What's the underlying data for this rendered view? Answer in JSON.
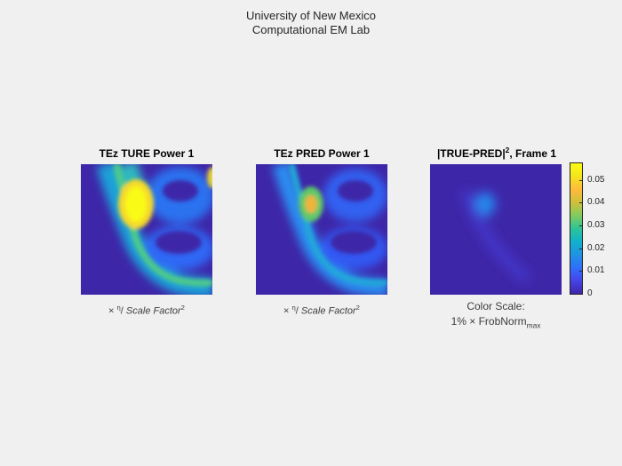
{
  "figure": {
    "suptitle_line1": "University of New Mexico",
    "suptitle_line2": "Computational EM Lab"
  },
  "panels": [
    {
      "title": "TEz  TURE Power 1",
      "xlabel_eta": "η",
      "xlabel_text": "Scale Factor",
      "xlabel_exp": "2"
    },
    {
      "title": "TEz  PRED Power 1",
      "xlabel_eta": "η",
      "xlabel_text": "Scale Factor",
      "xlabel_exp": "2"
    },
    {
      "title_main": "|TRUE-PRED|",
      "title_exp": "2",
      "title_tail": ", Frame 1",
      "xlabel_line1": "Color Scale:",
      "xlabel_line2_a": "1% ",
      "xlabel_line2_b": "FrobNorm",
      "xlabel_line2_sub": "max"
    }
  ],
  "colorbar": {
    "colormap": "parula",
    "ticks": [
      "0.05",
      "0.04",
      "0.03",
      "0.02",
      "0.01",
      "0"
    ],
    "range": [
      0,
      0.058
    ]
  },
  "colors": {
    "background": "#f0f0f0",
    "low": "#3e26a8",
    "mid": "#10b1cc",
    "high": "#f9fb15"
  },
  "chart_data": [
    {
      "type": "heatmap",
      "title": "TEz  TURE Power 1"
    },
    {
      "type": "heatmap",
      "title": "TEz  PRED Power 1"
    },
    {
      "type": "heatmap",
      "title": "|TRUE-PRED|^2, Frame 1",
      "zlim": [
        0,
        0.058
      ],
      "colorbar_ticks": [
        0,
        0.01,
        0.02,
        0.03,
        0.04,
        0.05
      ]
    }
  ]
}
